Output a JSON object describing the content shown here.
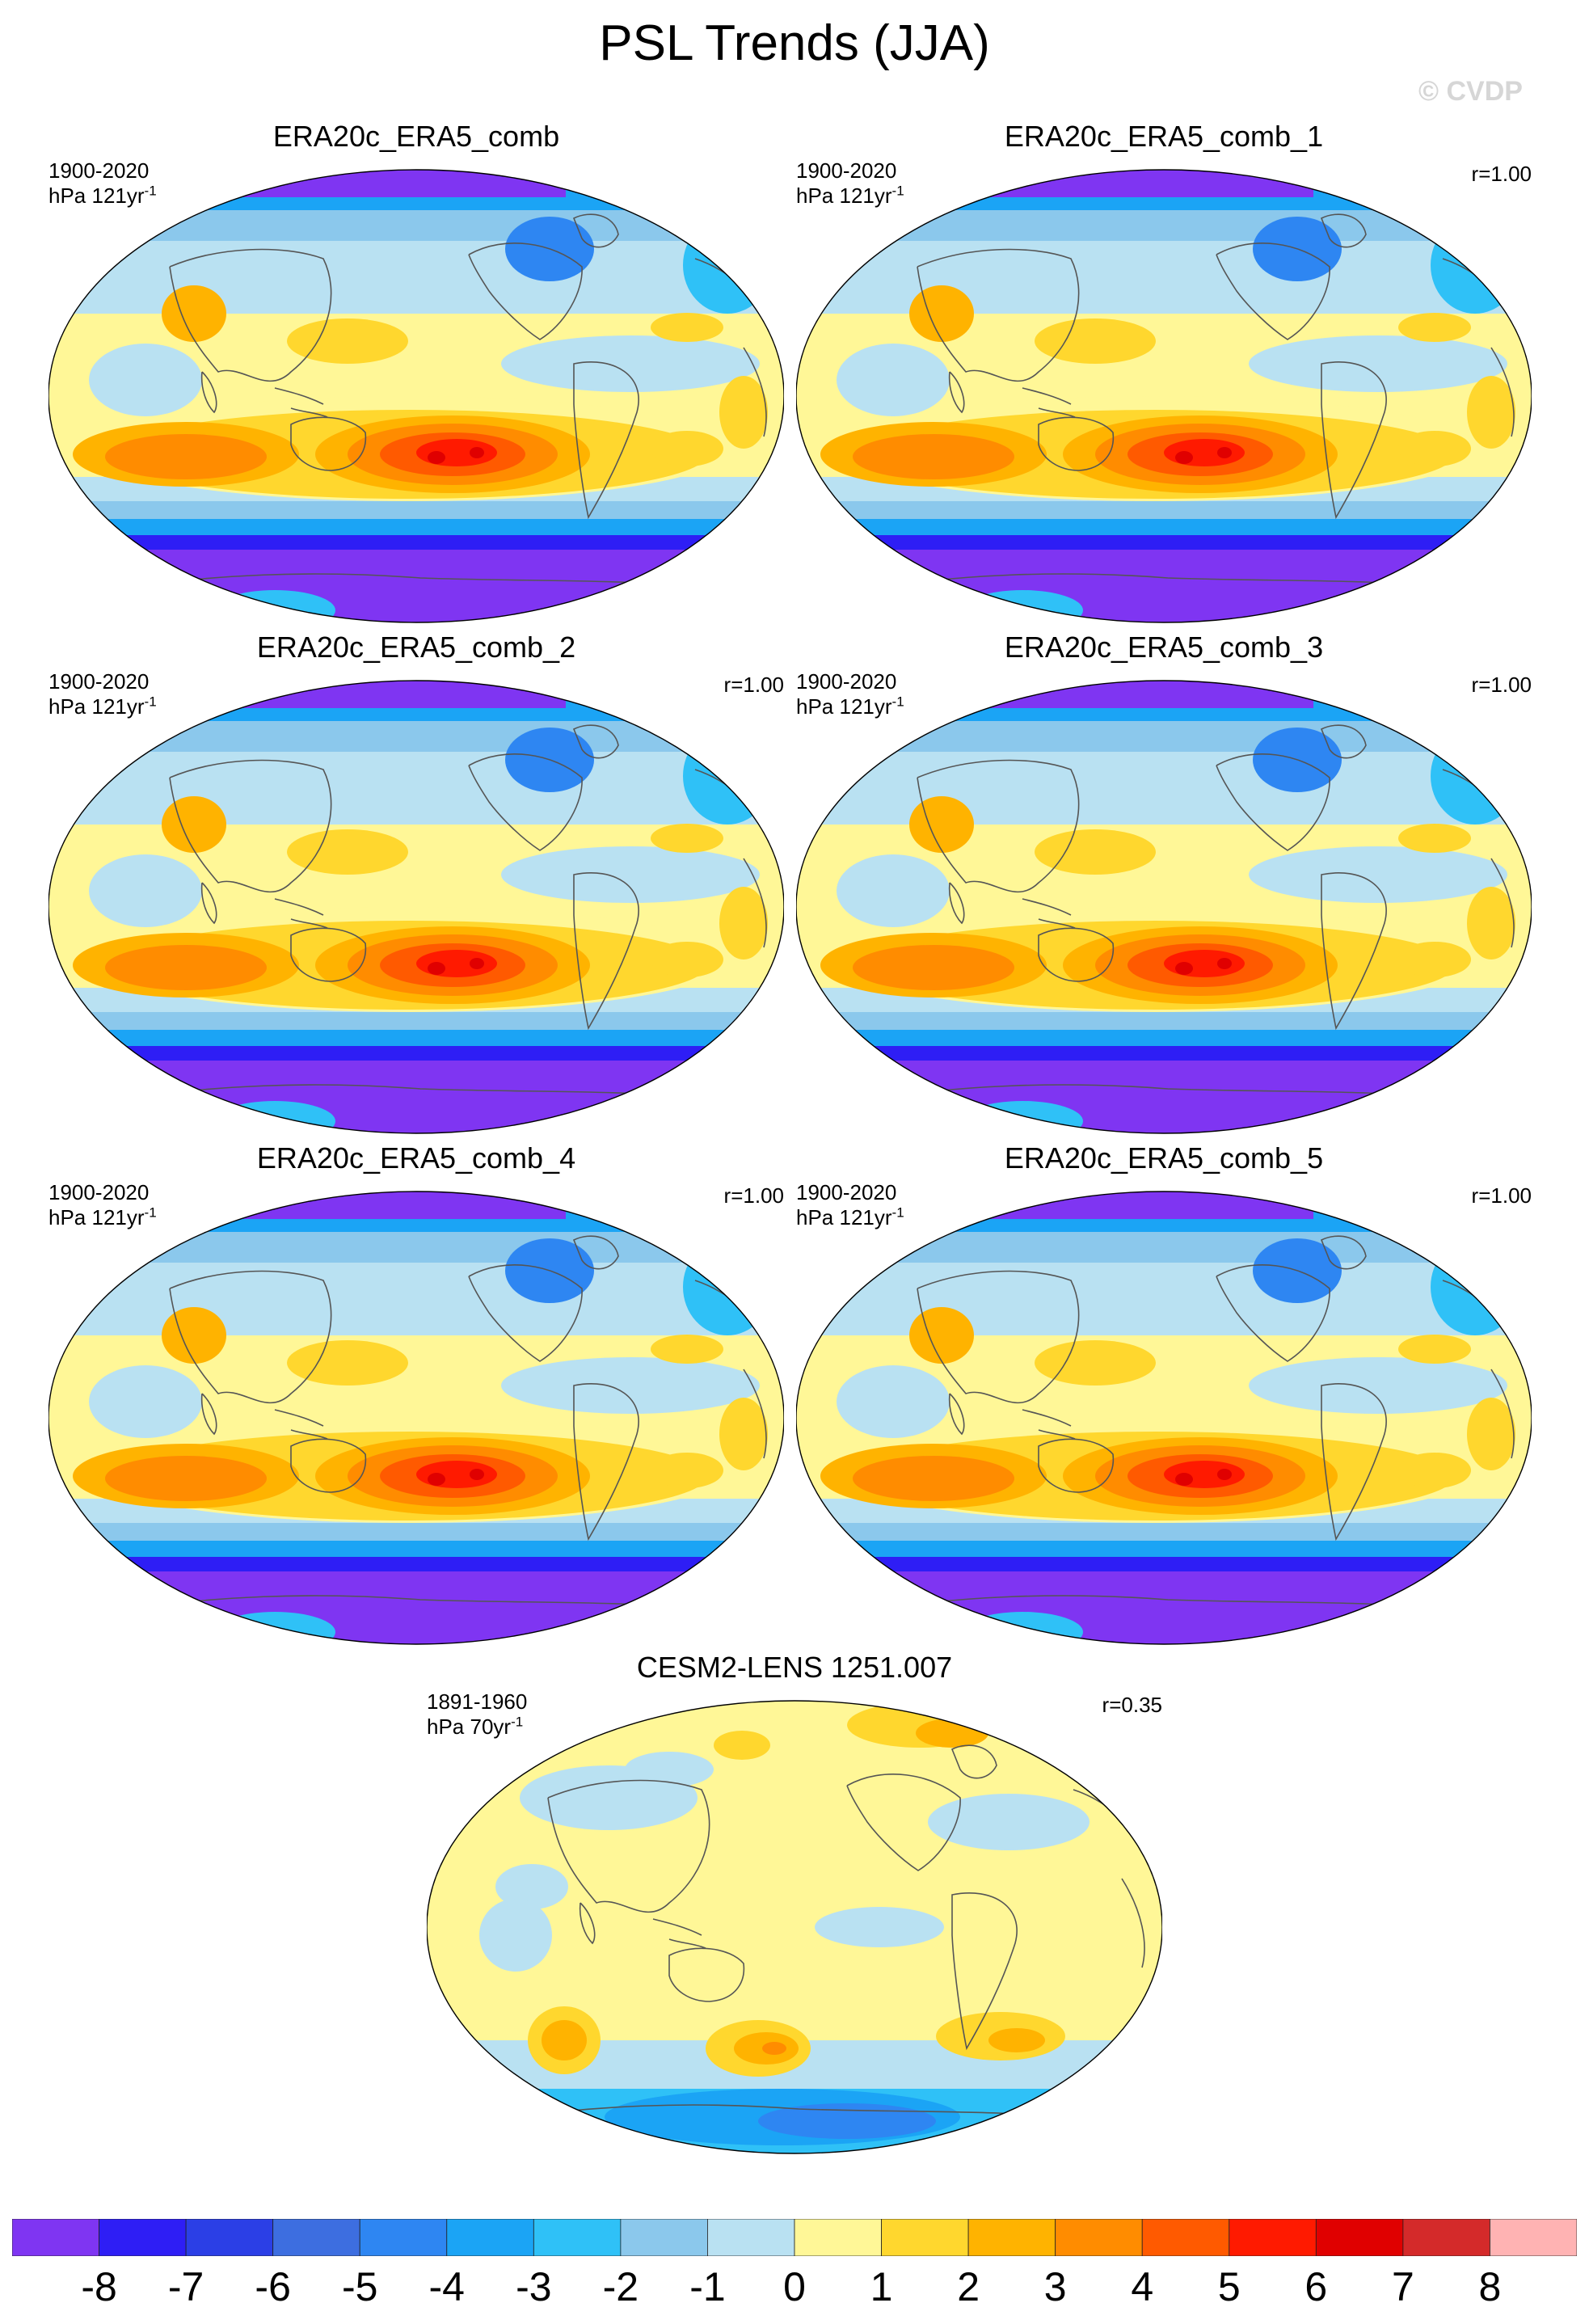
{
  "title": "PSL Trends (JJA)",
  "watermark": "© CVDP",
  "panels": [
    {
      "title": "ERA20c_ERA5_comb",
      "period": "1900-2020",
      "units_prefix": "hPa 121yr",
      "units_exp": "-1",
      "corr": "",
      "variant": "obs"
    },
    {
      "title": "ERA20c_ERA5_comb_1",
      "period": "1900-2020",
      "units_prefix": "hPa 121yr",
      "units_exp": "-1",
      "corr": "r=1.00",
      "variant": "obs"
    },
    {
      "title": "ERA20c_ERA5_comb_2",
      "period": "1900-2020",
      "units_prefix": "hPa 121yr",
      "units_exp": "-1",
      "corr": "r=1.00",
      "variant": "obs"
    },
    {
      "title": "ERA20c_ERA5_comb_3",
      "period": "1900-2020",
      "units_prefix": "hPa 121yr",
      "units_exp": "-1",
      "corr": "r=1.00",
      "variant": "obs"
    },
    {
      "title": "ERA20c_ERA5_comb_4",
      "period": "1900-2020",
      "units_prefix": "hPa 121yr",
      "units_exp": "-1",
      "corr": "r=1.00",
      "variant": "obs"
    },
    {
      "title": "ERA20c_ERA5_comb_5",
      "period": "1900-2020",
      "units_prefix": "hPa 121yr",
      "units_exp": "-1",
      "corr": "r=1.00",
      "variant": "obs"
    },
    {
      "title": "CESM2-LENS 1251.007",
      "period": "1891-1960",
      "units_prefix": "hPa 70yr",
      "units_exp": "-1",
      "corr": "r=0.35",
      "variant": "model"
    }
  ],
  "colorbar": {
    "labels": [
      "-8",
      "-7",
      "-6",
      "-5",
      "-4",
      "-3",
      "-2",
      "-1",
      "0",
      "1",
      "2",
      "3",
      "4",
      "5",
      "6",
      "7",
      "8"
    ],
    "colors": [
      "#7f35f2",
      "#2e1ef5",
      "#2b3fe6",
      "#3d6ee0",
      "#2e86f2",
      "#1ba4f5",
      "#2fc1f7",
      "#8bc8ec",
      "#b9e1f2",
      "#fff797",
      "#ffd72e",
      "#ffb300",
      "#ff8c00",
      "#ff5a00",
      "#ff1a00",
      "#e00000",
      "#d42a2a",
      "#ffb3b3"
    ]
  }
}
